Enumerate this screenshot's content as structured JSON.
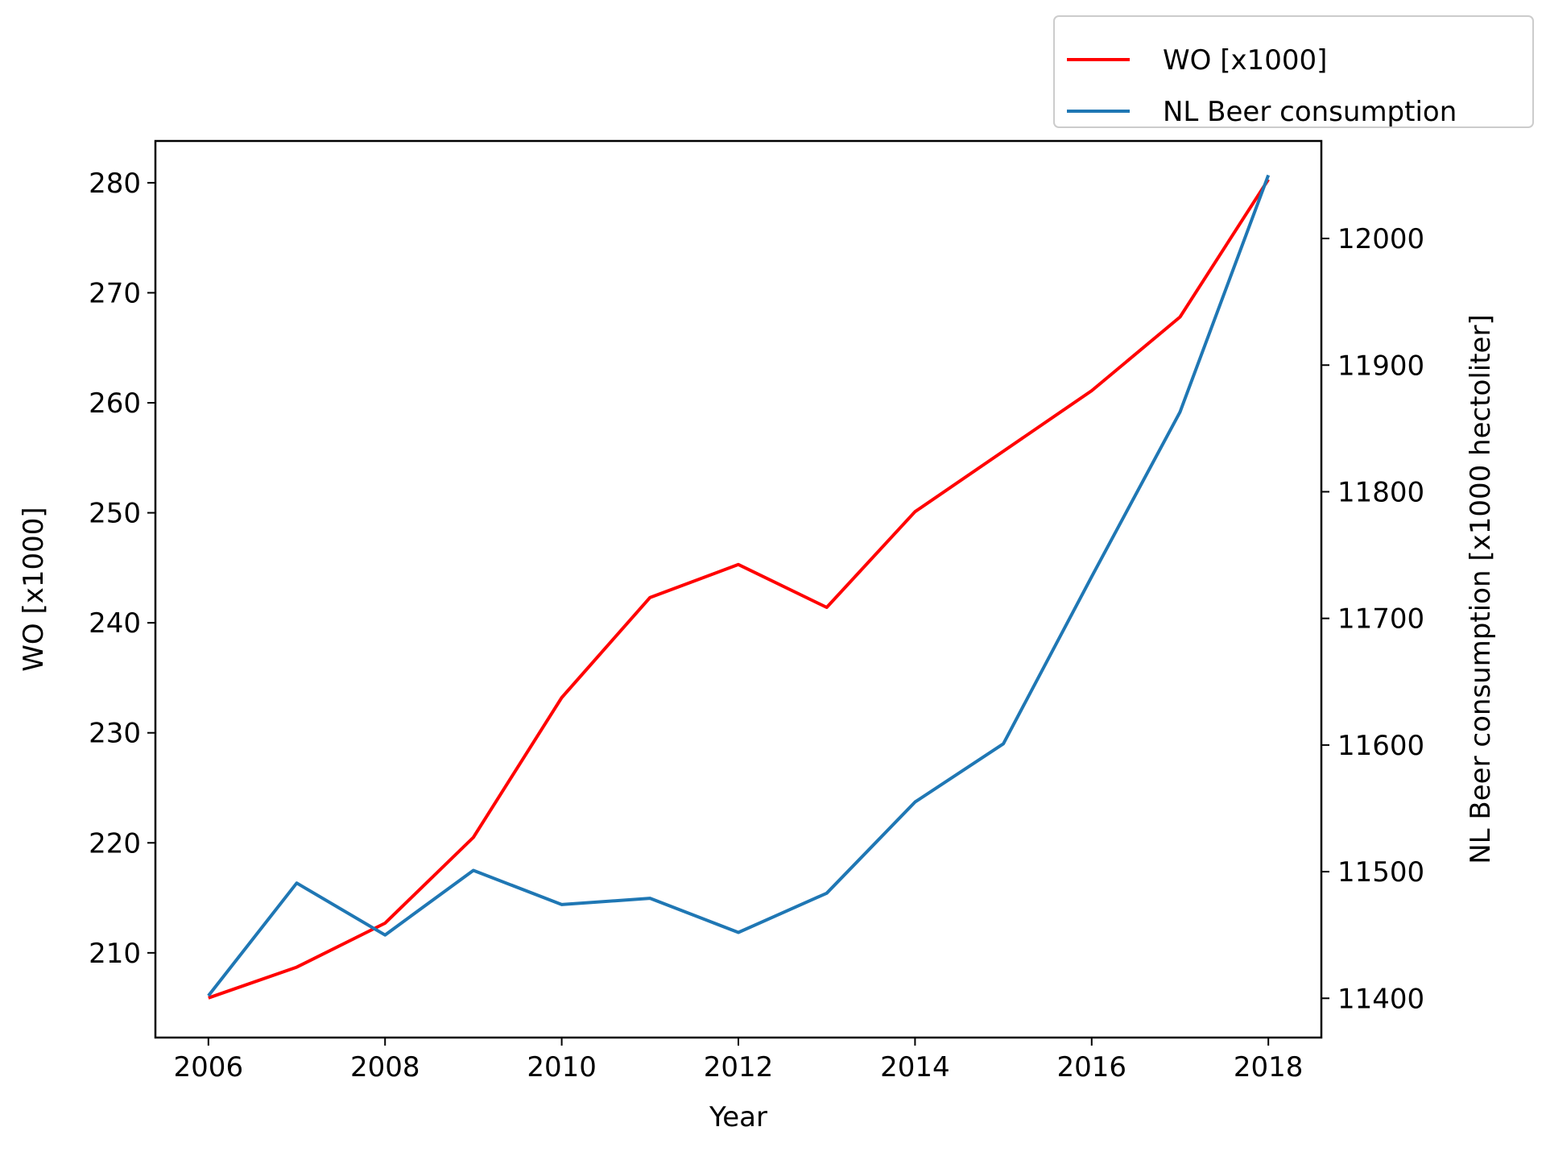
{
  "chart_data": {
    "type": "line",
    "x": [
      2006,
      2007,
      2008,
      2009,
      2010,
      2011,
      2012,
      2013,
      2014,
      2015,
      2016,
      2017,
      2018
    ],
    "xlabel": "Year",
    "xlim": [
      2005.4,
      2018.6
    ],
    "xticks": [
      2006,
      2008,
      2010,
      2012,
      2014,
      2016,
      2018
    ],
    "y_left": {
      "label": "WO [x1000]",
      "lim": [
        202.3,
        283.8
      ],
      "ticks": [
        210,
        220,
        230,
        240,
        250,
        260,
        270,
        280
      ]
    },
    "y_right": {
      "label": "NL Beer consumption [x1000 hectoliter]",
      "lim": [
        11369,
        12077
      ],
      "ticks": [
        11400,
        11500,
        11600,
        11700,
        11800,
        11900,
        12000
      ]
    },
    "series": [
      {
        "name": "WO [x1000]",
        "axis": "left",
        "color": "#ff0000",
        "values": [
          205.9,
          208.7,
          212.7,
          220.5,
          233.2,
          242.3,
          245.3,
          241.4,
          250.1,
          255.6,
          261.1,
          267.8,
          280.3
        ]
      },
      {
        "name": "NL Beer consumption",
        "axis": "right",
        "color": "#1f77b4",
        "values": [
          11402,
          11491,
          11450,
          11501,
          11474,
          11479,
          11452,
          11483,
          11555,
          11601,
          11733,
          11863,
          12050
        ]
      }
    ],
    "legend": {
      "placement": "top-right, above the plot"
    },
    "grid": false
  }
}
